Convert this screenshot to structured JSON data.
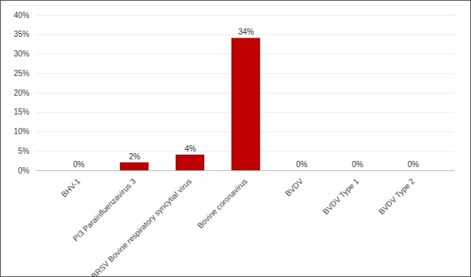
{
  "chart_data": {
    "type": "bar",
    "categories": [
      "BHV-1",
      "PI3 Parainfluenzavirus 3",
      "BRSV Bovine respiratory syncytial virus",
      "Bovine coronavirus",
      "BVDV",
      "BVDV Type 1",
      "BVDV Type 2"
    ],
    "values": [
      0,
      2,
      4,
      34,
      0,
      0,
      0
    ],
    "value_labels": [
      "0%",
      "2%",
      "4%",
      "34%",
      "0%",
      "0%",
      "0%"
    ],
    "color": "#c00000",
    "ylim": [
      0,
      40
    ],
    "yticks": [
      {
        "value": 0,
        "label": "0%"
      },
      {
        "value": 5,
        "label": "5%"
      },
      {
        "value": 10,
        "label": "10%"
      },
      {
        "value": 15,
        "label": "15%"
      },
      {
        "value": 20,
        "label": "20%"
      },
      {
        "value": 25,
        "label": "25%"
      },
      {
        "value": 30,
        "label": "30%"
      },
      {
        "value": 35,
        "label": "35%"
      },
      {
        "value": 40,
        "label": "40%"
      }
    ],
    "grid": true,
    "data_labels": true
  }
}
